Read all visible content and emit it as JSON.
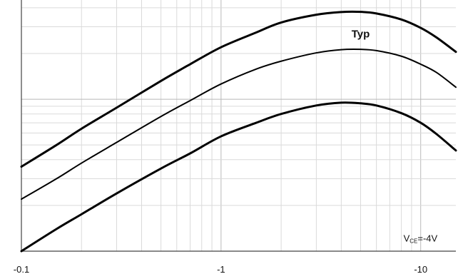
{
  "chart_data": {
    "type": "line",
    "title": "",
    "xlabel": "",
    "ylabel": "",
    "x_scale": "log",
    "y_scale": "log",
    "xlim": [
      0.1,
      15
    ],
    "ylim": [
      10,
      450
    ],
    "x_ticks": [
      {
        "value": 0.1,
        "label": "-0.1"
      },
      {
        "value": 1,
        "label": "-1"
      },
      {
        "value": 10,
        "label": "-10"
      }
    ],
    "y_ticks": [
      {
        "value": 100,
        "label": ""
      },
      {
        "value": 10,
        "label": ""
      }
    ],
    "grid": true,
    "series": [
      {
        "name": "",
        "stroke_width": 3,
        "points": [
          [
            0.1,
            36
          ],
          [
            0.15,
            50
          ],
          [
            0.2,
            64
          ],
          [
            0.3,
            88
          ],
          [
            0.5,
            132
          ],
          [
            0.7,
            170
          ],
          [
            1,
            220
          ],
          [
            1.5,
            275
          ],
          [
            2,
            320
          ],
          [
            3,
            360
          ],
          [
            4,
            375
          ],
          [
            5,
            376
          ],
          [
            6,
            367
          ],
          [
            8,
            335
          ],
          [
            10,
            295
          ],
          [
            12,
            255
          ],
          [
            15,
            205
          ]
        ]
      },
      {
        "name": "Typ",
        "stroke_width": 2,
        "points": [
          [
            0.1,
            22
          ],
          [
            0.15,
            30
          ],
          [
            0.2,
            38
          ],
          [
            0.3,
            52
          ],
          [
            0.5,
            77
          ],
          [
            0.7,
            98
          ],
          [
            1,
            126
          ],
          [
            1.5,
            158
          ],
          [
            2,
            178
          ],
          [
            3,
            202
          ],
          [
            4,
            212
          ],
          [
            5,
            213
          ],
          [
            6,
            209
          ],
          [
            8,
            192
          ],
          [
            10,
            170
          ],
          [
            12,
            150
          ],
          [
            15,
            120
          ]
        ]
      },
      {
        "name": "",
        "stroke_width": 3,
        "points": [
          [
            0.1,
            10
          ],
          [
            0.15,
            14
          ],
          [
            0.2,
            17.5
          ],
          [
            0.3,
            24
          ],
          [
            0.5,
            35
          ],
          [
            0.7,
            44
          ],
          [
            1,
            57
          ],
          [
            1.5,
            70
          ],
          [
            2,
            80
          ],
          [
            3,
            91
          ],
          [
            4,
            95
          ],
          [
            5,
            94
          ],
          [
            6,
            91
          ],
          [
            8,
            81
          ],
          [
            10,
            70
          ],
          [
            12,
            59
          ],
          [
            15,
            46
          ]
        ]
      }
    ],
    "annotations": [
      {
        "text": "Typ",
        "x": 5,
        "y": 255
      },
      {
        "text_main": "V",
        "text_sub": "CE",
        "text_rest": "=-4V",
        "x": 8.2,
        "y": 11.6
      }
    ]
  }
}
